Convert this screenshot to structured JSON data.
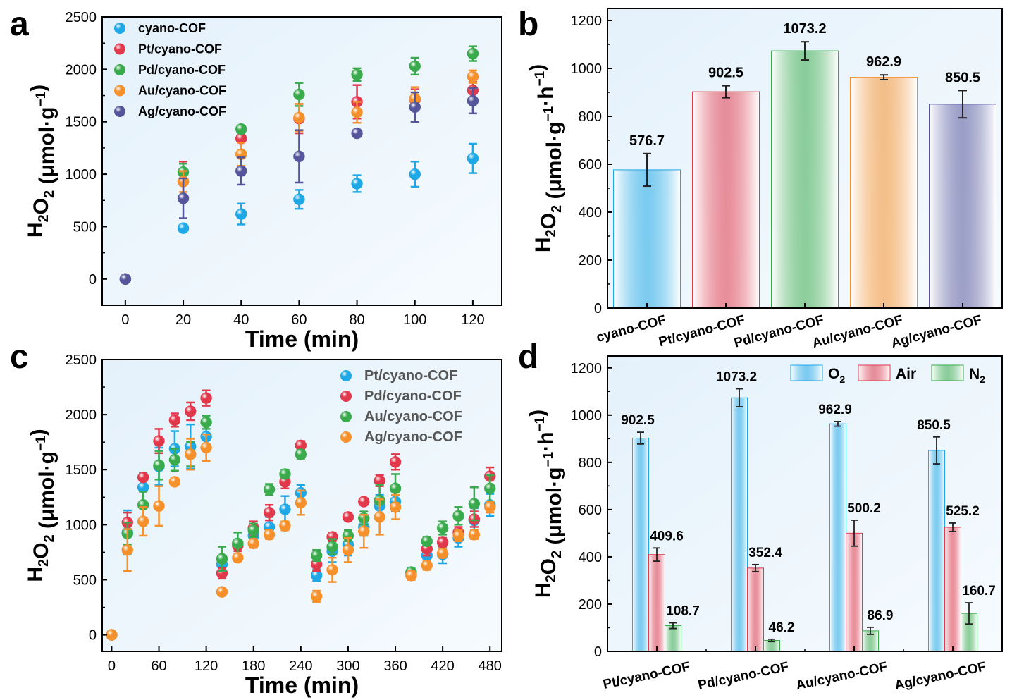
{
  "figure": {
    "panels": [
      "a",
      "b",
      "c",
      "d"
    ]
  },
  "colors": {
    "blue": "#1fa8e6",
    "red": "#e2384b",
    "green": "#3aab4c",
    "orange": "#f6902a",
    "purple": "#54559b",
    "plot_bg": "#eef6fc"
  },
  "chart_data": [
    {
      "id": "a",
      "type": "scatter",
      "xlabel": "Time (min)",
      "ylabel": "H2O2 (μmol·g-1)",
      "xlim": [
        -8,
        130
      ],
      "ylim": [
        -250,
        2500
      ],
      "xticks": [
        0,
        20,
        40,
        60,
        80,
        100,
        120
      ],
      "yticks": [
        0,
        500,
        1000,
        1500,
        2000,
        2500
      ],
      "legend_position": "top-left",
      "series": [
        {
          "name": "cyano-COF",
          "color": "#1fa8e6",
          "x": [
            0,
            20,
            40,
            60,
            80,
            100,
            120
          ],
          "y": [
            0,
            485,
            620,
            760,
            910,
            1000,
            1150
          ],
          "err": [
            0,
            30,
            100,
            90,
            80,
            120,
            140
          ]
        },
        {
          "name": "Pt/cyano-COF",
          "color": "#e2384b",
          "x": [
            0,
            20,
            40,
            60,
            80,
            100,
            120
          ],
          "y": [
            0,
            930,
            1340,
            1530,
            1690,
            1710,
            1800
          ],
          "err": [
            0,
            190,
            120,
            140,
            160,
            100,
            80
          ]
        },
        {
          "name": "Pd/cyano-COF",
          "color": "#3aab4c",
          "x": [
            0,
            20,
            40,
            60,
            80,
            100,
            120
          ],
          "y": [
            0,
            1020,
            1430,
            1760,
            1950,
            2030,
            2150
          ],
          "err": [
            0,
            80,
            30,
            110,
            60,
            80,
            70
          ]
        },
        {
          "name": "Au/cyano-COF",
          "color": "#f6902a",
          "x": [
            0,
            20,
            40,
            60,
            80,
            100,
            120
          ],
          "y": [
            0,
            930,
            1190,
            1540,
            1590,
            1720,
            1930
          ],
          "err": [
            0,
            100,
            110,
            130,
            100,
            110,
            60
          ]
        },
        {
          "name": "Ag/cyano-COF",
          "color": "#54559b",
          "x": [
            0,
            20,
            40,
            60,
            80,
            100,
            120
          ],
          "y": [
            0,
            770,
            1030,
            1170,
            1390,
            1640,
            1700
          ],
          "err": [
            0,
            190,
            130,
            250,
            30,
            140,
            120
          ]
        }
      ]
    },
    {
      "id": "b",
      "type": "bar",
      "ylabel": "H2O2 (μmol·g-1·h-1)",
      "ylim": [
        0,
        1250
      ],
      "yticks": [
        0,
        200,
        400,
        600,
        800,
        1000,
        1200
      ],
      "categories": [
        "cyano-COF",
        "Pt/cyano-COF",
        "Pd/cyano-COF",
        "Au/cyano-COF",
        "Ag/cyano-COF"
      ],
      "values": [
        576.7,
        902.5,
        1073.2,
        962.9,
        850.5
      ],
      "labels": [
        "576.7",
        "902.5",
        "1073.2",
        "962.9",
        "850.5"
      ],
      "errors": [
        68,
        25,
        38,
        10,
        57
      ],
      "colors": [
        "#1fa8e6",
        "#e2384b",
        "#3aab4c",
        "#f6902a",
        "#54559b"
      ]
    },
    {
      "id": "c",
      "type": "scatter",
      "xlabel": "Time (min)",
      "ylabel": "H2O2 (μmol·g-1)",
      "xlim": [
        -12,
        495
      ],
      "ylim": [
        -150,
        2500
      ],
      "xticks": [
        0,
        60,
        120,
        180,
        240,
        300,
        360,
        420,
        480
      ],
      "yticks": [
        0,
        500,
        1000,
        1500,
        2000,
        2500
      ],
      "legend_position": "top-right",
      "series": [
        {
          "name": "Pt/cyano-COF",
          "color": "#1fa8e6",
          "x": [
            0,
            20,
            40,
            60,
            80,
            100,
            120,
            140,
            160,
            180,
            200,
            220,
            240,
            260,
            280,
            300,
            320,
            340,
            360,
            380,
            400,
            420,
            440,
            460,
            480
          ],
          "y": [
            0,
            930,
            1340,
            1530,
            1690,
            1710,
            1800,
            640,
            830,
            900,
            980,
            1140,
            1290,
            540,
            760,
            820,
            980,
            1170,
            1210,
            560,
            720,
            730,
            880,
            1040,
            1180
          ],
          "err": [
            0,
            200,
            130,
            170,
            160,
            200,
            100,
            60,
            100,
            70,
            90,
            120,
            70,
            50,
            100,
            100,
            80,
            100,
            90,
            50,
            80,
            80,
            80,
            110,
            100
          ]
        },
        {
          "name": "Pd/cyano-COF",
          "color": "#e2384b",
          "x": [
            0,
            20,
            40,
            60,
            80,
            100,
            120,
            140,
            160,
            180,
            200,
            220,
            240,
            260,
            280,
            300,
            320,
            340,
            360,
            380,
            400,
            420,
            440,
            460,
            480
          ],
          "y": [
            0,
            1020,
            1430,
            1760,
            1950,
            2030,
            2150,
            560,
            810,
            970,
            1110,
            1390,
            1720,
            640,
            890,
            1070,
            1210,
            1400,
            1570,
            540,
            780,
            840,
            930,
            1050,
            1440
          ],
          "err": [
            0,
            90,
            30,
            110,
            60,
            80,
            70,
            50,
            50,
            60,
            70,
            60,
            40,
            60,
            40,
            30,
            30,
            50,
            70,
            40,
            60,
            40,
            50,
            70,
            80
          ]
        },
        {
          "name": "Au/cyano-COF",
          "color": "#3aab4c",
          "x": [
            0,
            20,
            40,
            60,
            80,
            100,
            120,
            140,
            160,
            180,
            200,
            220,
            240,
            260,
            280,
            300,
            320,
            340,
            360,
            380,
            400,
            420,
            440,
            460,
            480
          ],
          "y": [
            0,
            920,
            1180,
            1540,
            1590,
            1640,
            1930,
            690,
            830,
            950,
            1320,
            1460,
            1640,
            720,
            800,
            900,
            1060,
            1220,
            1330,
            570,
            850,
            970,
            1080,
            1190,
            1330
          ],
          "err": [
            0,
            100,
            120,
            130,
            100,
            110,
            60,
            110,
            100,
            60,
            50,
            40,
            40,
            50,
            70,
            50,
            60,
            140,
            130,
            30,
            40,
            60,
            80,
            150,
            120
          ]
        },
        {
          "name": "Ag/cyano-COF",
          "color": "#f6902a",
          "x": [
            0,
            20,
            40,
            60,
            80,
            100,
            120,
            140,
            160,
            180,
            200,
            220,
            240,
            260,
            280,
            300,
            320,
            340,
            360,
            380,
            400,
            420,
            440,
            460,
            480
          ],
          "y": [
            0,
            770,
            1030,
            1170,
            1390,
            1640,
            1700,
            390,
            700,
            830,
            910,
            990,
            1200,
            350,
            590,
            770,
            940,
            1070,
            1160,
            540,
            630,
            740,
            900,
            910,
            1160
          ],
          "err": [
            0,
            190,
            130,
            180,
            30,
            140,
            120,
            30,
            30,
            40,
            40,
            40,
            110,
            50,
            110,
            110,
            150,
            160,
            110,
            40,
            40,
            40,
            50,
            40,
            50
          ]
        }
      ]
    },
    {
      "id": "d",
      "type": "bar",
      "ylabel": "H2O2 (μmol·g-1·h-1)",
      "ylim": [
        0,
        1250
      ],
      "yticks": [
        0,
        200,
        400,
        600,
        800,
        1000,
        1200
      ],
      "legend_position": "top-right",
      "categories": [
        "Pt/cyano-COF",
        "Pd/cyano-COF",
        "Au/cyano-COF",
        "Ag/cyano-COF"
      ],
      "series": [
        {
          "name": "O2",
          "color": "#1fa8e6",
          "values": [
            902.5,
            1073.2,
            962.9,
            850.5
          ],
          "labels": [
            "902.5",
            "1073.2",
            "962.9",
            "850.5"
          ],
          "errors": [
            25,
            38,
            10,
            57
          ]
        },
        {
          "name": "Air",
          "color": "#e2384b",
          "values": [
            409.6,
            352.4,
            500.2,
            525.2
          ],
          "labels": [
            "409.6",
            "352.4",
            "500.2",
            "525.2"
          ],
          "errors": [
            28,
            15,
            55,
            18
          ]
        },
        {
          "name": "N2",
          "color": "#3aab4c",
          "values": [
            108.7,
            46.2,
            86.9,
            160.7
          ],
          "labels": [
            "108.7",
            "46.2",
            "86.9",
            "160.7"
          ],
          "errors": [
            12,
            5,
            15,
            45
          ]
        }
      ]
    }
  ]
}
